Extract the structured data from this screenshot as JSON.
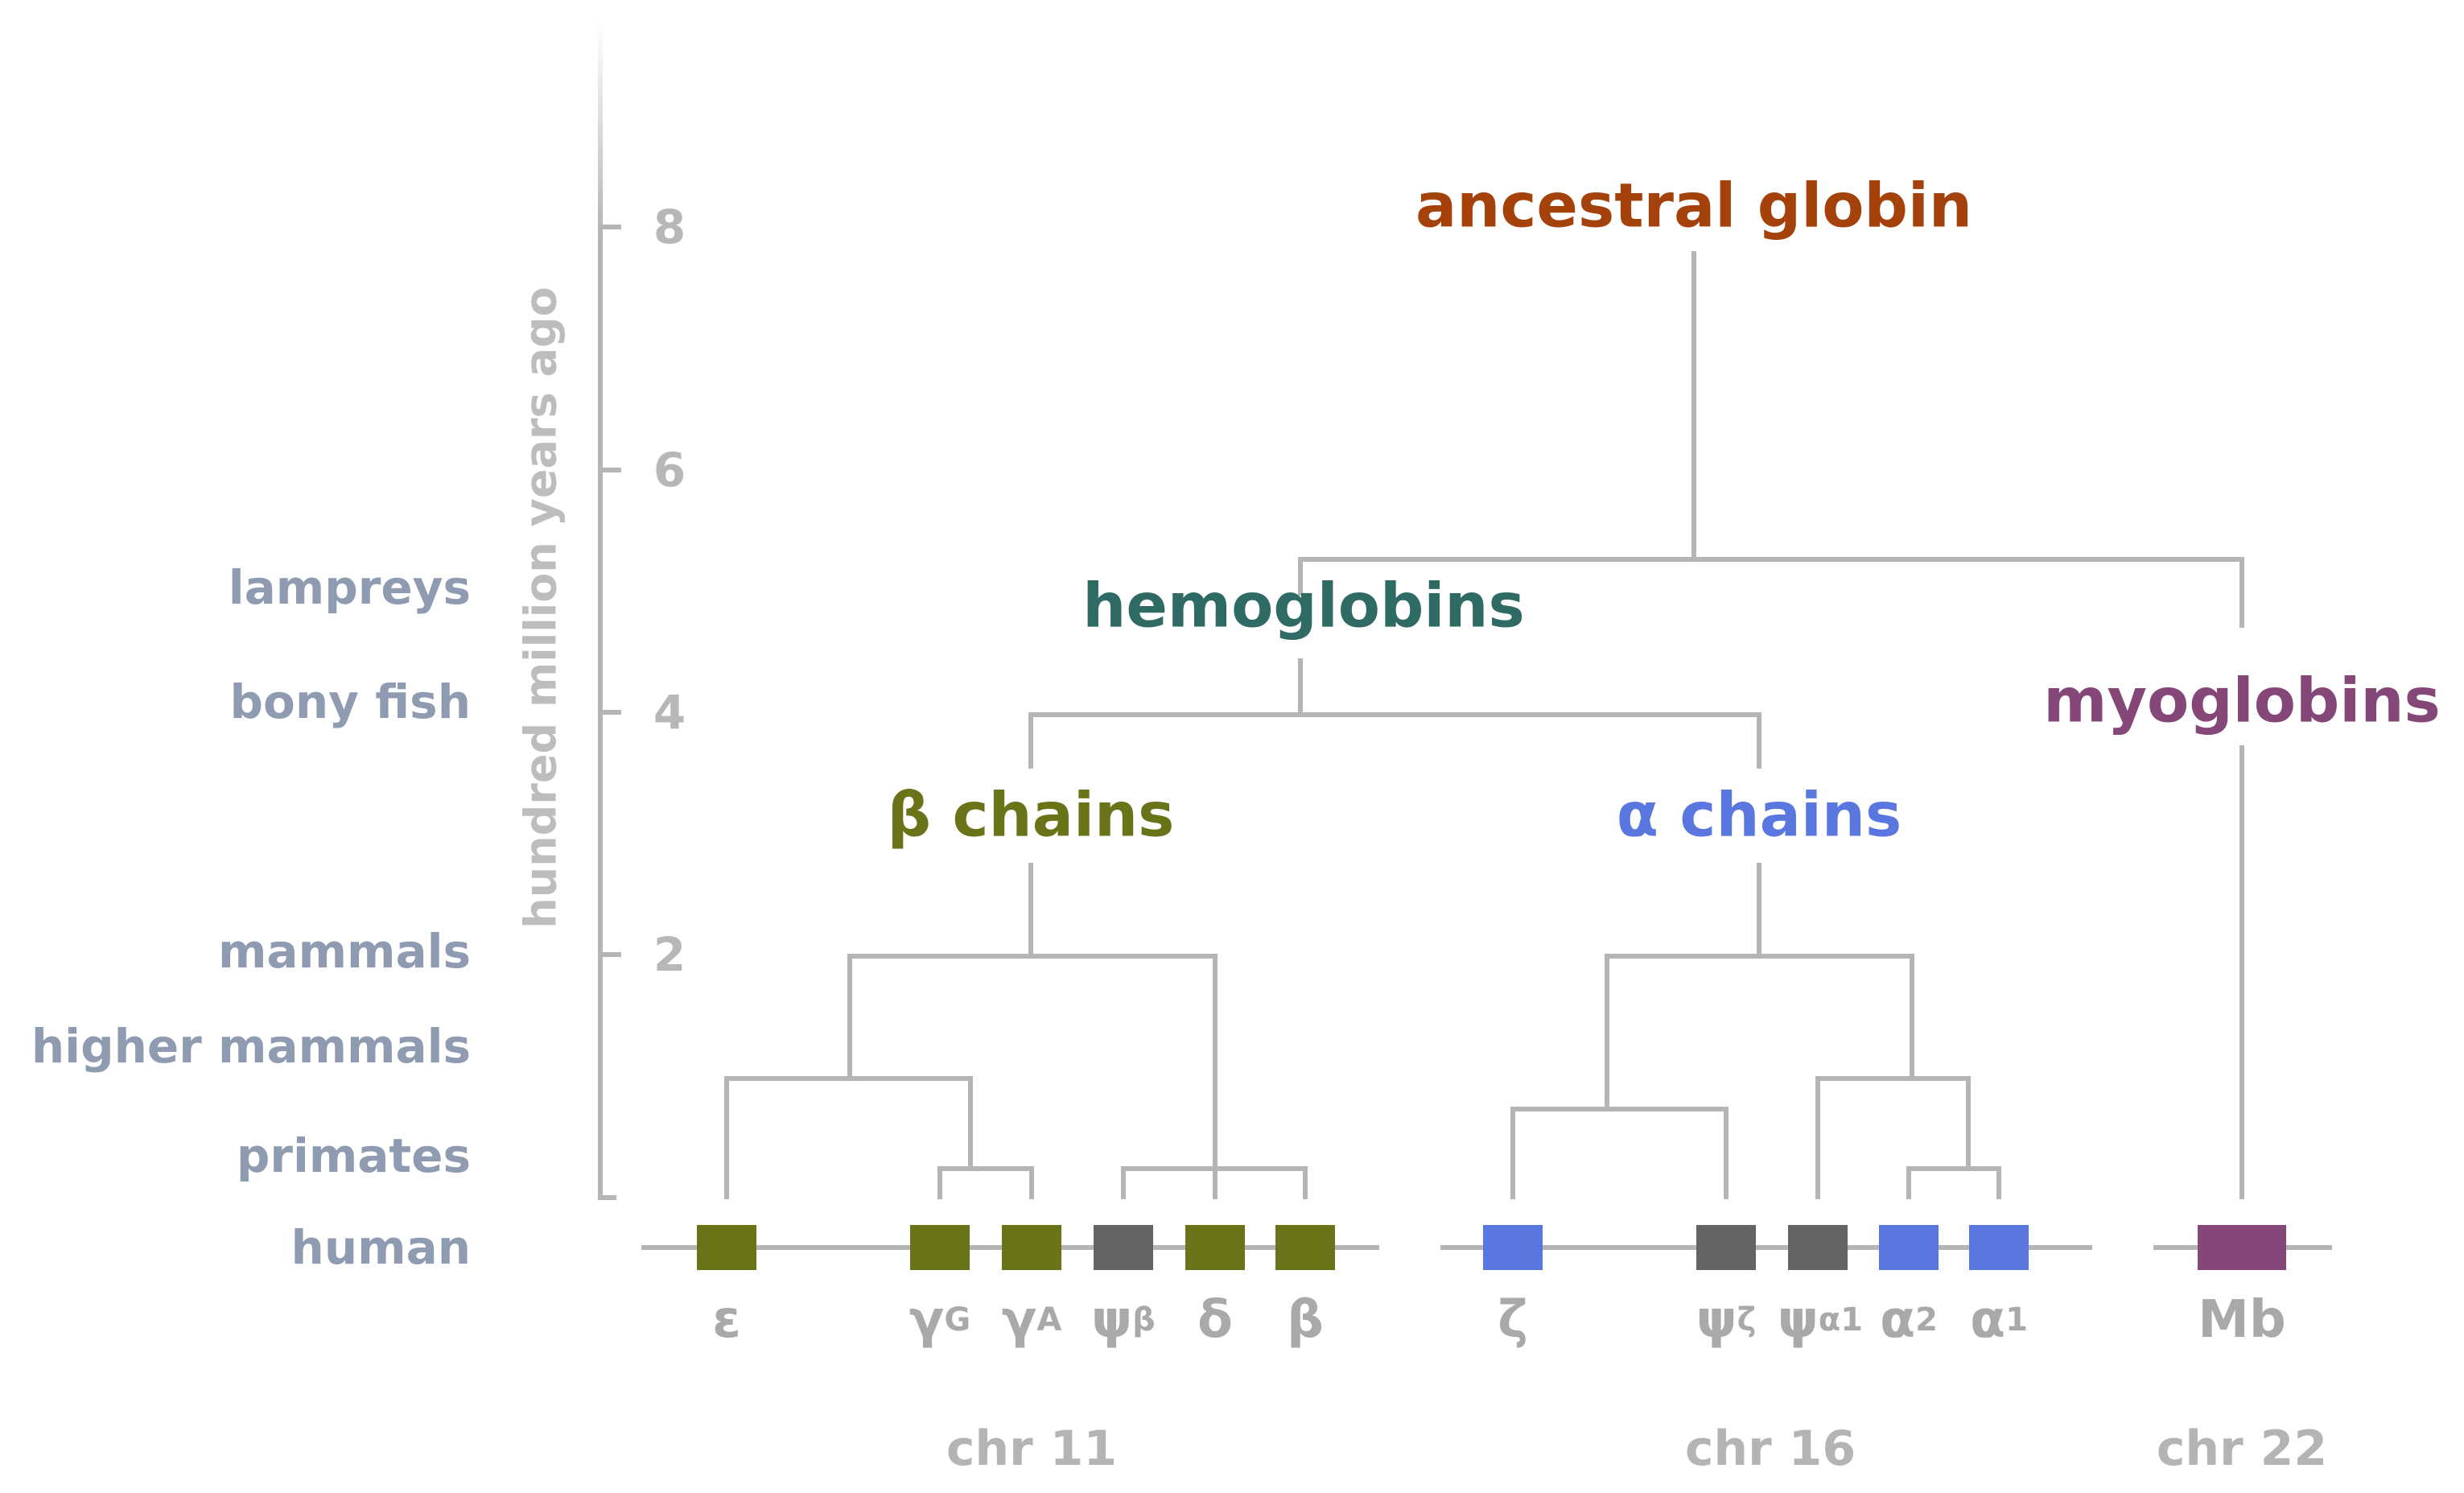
{
  "axis": {
    "title": "hundred million years ago",
    "ticks": [
      "2",
      "4",
      "6",
      "8"
    ]
  },
  "eras": [
    "lampreys",
    "bony fish",
    "mammals",
    "higher mammals",
    "primates",
    "human"
  ],
  "groups": {
    "ancestral": {
      "label": "ancestral globin",
      "color": "#a5420c"
    },
    "hemoglobins": {
      "label": "hemoglobins",
      "color": "#2f6b64"
    },
    "beta": {
      "label": "β chains",
      "color": "#6b7318"
    },
    "alpha": {
      "label": "α chains",
      "color": "#5a77e0"
    },
    "myoglobins": {
      "label": "myoglobins",
      "color": "#854678"
    }
  },
  "genes": [
    {
      "main": "ε",
      "sub": "",
      "color": "#6b7318"
    },
    {
      "main": "γ",
      "sub": "G",
      "color": "#6b7318"
    },
    {
      "main": "γ",
      "sub": "A",
      "color": "#6b7318"
    },
    {
      "main": "ψ",
      "sub": "β",
      "color": "#646464"
    },
    {
      "main": "δ",
      "sub": "",
      "color": "#6b7318"
    },
    {
      "main": "β",
      "sub": "",
      "color": "#6b7318"
    },
    {
      "main": "ζ",
      "sub": "",
      "color": "#5a77e0"
    },
    {
      "main": "ψ",
      "sub": "ζ",
      "color": "#646464"
    },
    {
      "main": "ψ",
      "sub": "α1",
      "color": "#646464"
    },
    {
      "main": "α",
      "sub": "2",
      "color": "#5a77e0"
    },
    {
      "main": "α",
      "sub": "1",
      "color": "#5a77e0"
    },
    {
      "main": "Mb",
      "sub": "",
      "color": "#854678"
    }
  ],
  "chromosomes": [
    "chr 11",
    "chr 16",
    "chr 22"
  ]
}
